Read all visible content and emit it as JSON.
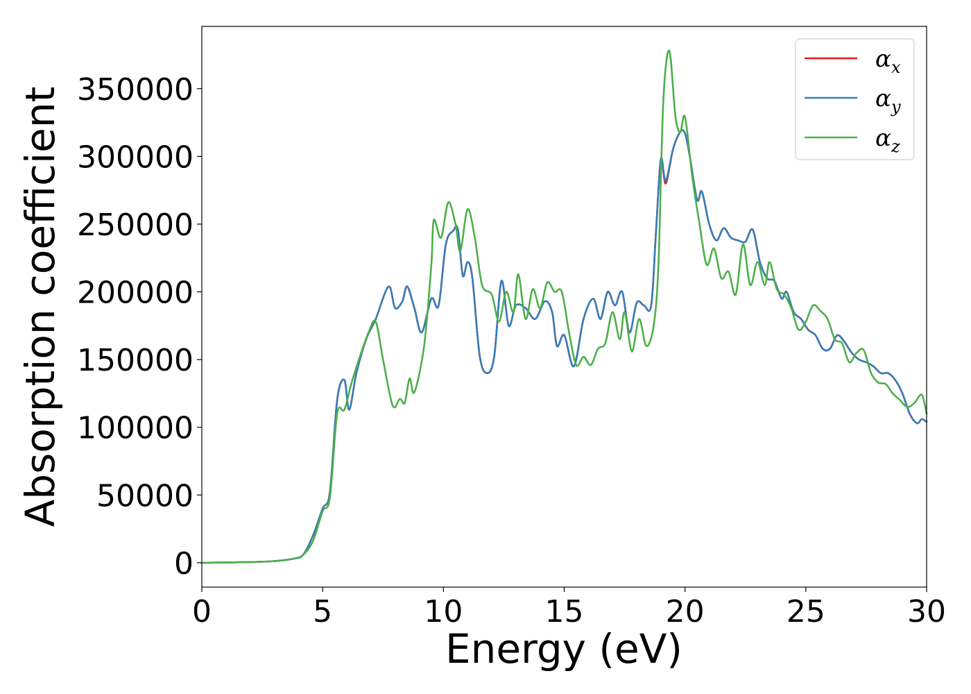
{
  "chart_data": {
    "type": "line",
    "title": "",
    "xlabel": "Energy (eV)",
    "ylabel": "Absorption coefficient",
    "xlim": [
      0,
      30
    ],
    "ylim": [
      -18000,
      396000
    ],
    "x_ticks": [
      0,
      5,
      10,
      15,
      20,
      25,
      30
    ],
    "y_ticks": [
      0,
      50000,
      100000,
      150000,
      200000,
      250000,
      300000,
      350000
    ],
    "grid": false,
    "legend_position": "top-right",
    "series": [
      {
        "name": "α",
        "subscript": "x",
        "color": "#e41a1c",
        "points": [
          [
            0,
            0
          ],
          [
            2,
            500
          ],
          [
            3,
            1200
          ],
          [
            3.8,
            3000
          ],
          [
            4.2,
            6000
          ],
          [
            4.6,
            20000
          ],
          [
            5.0,
            40000
          ],
          [
            5.3,
            52000
          ],
          [
            5.6,
            120000
          ],
          [
            5.9,
            135000
          ],
          [
            6.1,
            113000
          ],
          [
            6.4,
            140000
          ],
          [
            6.8,
            165000
          ],
          [
            7.2,
            180000
          ],
          [
            7.6,
            200000
          ],
          [
            7.8,
            203000
          ],
          [
            8.0,
            188000
          ],
          [
            8.3,
            193000
          ],
          [
            8.5,
            204000
          ],
          [
            8.8,
            188000
          ],
          [
            9.1,
            170000
          ],
          [
            9.5,
            195000
          ],
          [
            9.8,
            190000
          ],
          [
            10.1,
            235000
          ],
          [
            10.4,
            245000
          ],
          [
            10.6,
            246000
          ],
          [
            10.8,
            212000
          ],
          [
            11.0,
            222000
          ],
          [
            11.2,
            210000
          ],
          [
            11.5,
            153000
          ],
          [
            11.8,
            140000
          ],
          [
            12.1,
            152000
          ],
          [
            12.4,
            208000
          ],
          [
            12.7,
            175000
          ],
          [
            13.0,
            190000
          ],
          [
            13.4,
            188000
          ],
          [
            13.8,
            180000
          ],
          [
            14.2,
            193000
          ],
          [
            14.5,
            185000
          ],
          [
            14.7,
            160000
          ],
          [
            15.0,
            168000
          ],
          [
            15.4,
            145000
          ],
          [
            15.8,
            180000
          ],
          [
            16.2,
            195000
          ],
          [
            16.5,
            180000
          ],
          [
            16.8,
            200000
          ],
          [
            17.1,
            190000
          ],
          [
            17.4,
            200000
          ],
          [
            17.7,
            170000
          ],
          [
            18.0,
            192000
          ],
          [
            18.3,
            190000
          ],
          [
            18.6,
            190000
          ],
          [
            18.8,
            245000
          ],
          [
            19.0,
            298000
          ],
          [
            19.2,
            280000
          ],
          [
            19.5,
            305000
          ],
          [
            19.8,
            318000
          ],
          [
            20.0,
            317000
          ],
          [
            20.2,
            300000
          ],
          [
            20.5,
            268000
          ],
          [
            20.7,
            274000
          ],
          [
            21.0,
            250000
          ],
          [
            21.3,
            238000
          ],
          [
            21.6,
            247000
          ],
          [
            21.9,
            240000
          ],
          [
            22.2,
            238000
          ],
          [
            22.5,
            237000
          ],
          [
            22.8,
            246000
          ],
          [
            23.1,
            222000
          ],
          [
            23.4,
            210000
          ],
          [
            23.7,
            208000
          ],
          [
            24.0,
            195000
          ],
          [
            24.2,
            200000
          ],
          [
            24.5,
            185000
          ],
          [
            24.8,
            180000
          ],
          [
            25.1,
            172000
          ],
          [
            25.4,
            168000
          ],
          [
            25.7,
            158000
          ],
          [
            26.0,
            158000
          ],
          [
            26.3,
            168000
          ],
          [
            26.6,
            163000
          ],
          [
            26.9,
            155000
          ],
          [
            27.2,
            150000
          ],
          [
            27.5,
            148000
          ],
          [
            27.8,
            145000
          ],
          [
            28.1,
            140000
          ],
          [
            28.4,
            140000
          ],
          [
            28.7,
            135000
          ],
          [
            29.0,
            125000
          ],
          [
            29.3,
            110000
          ],
          [
            29.6,
            103000
          ],
          [
            29.8,
            106000
          ],
          [
            30.0,
            104000
          ]
        ]
      },
      {
        "name": "α",
        "subscript": "y",
        "color": "#377eb8",
        "points": [
          [
            0,
            0
          ],
          [
            2,
            500
          ],
          [
            3,
            1200
          ],
          [
            3.8,
            3000
          ],
          [
            4.2,
            6000
          ],
          [
            4.6,
            20000
          ],
          [
            5.0,
            40000
          ],
          [
            5.3,
            52000
          ],
          [
            5.6,
            120000
          ],
          [
            5.9,
            135000
          ],
          [
            6.1,
            113000
          ],
          [
            6.4,
            140000
          ],
          [
            6.8,
            165000
          ],
          [
            7.2,
            180000
          ],
          [
            7.6,
            200000
          ],
          [
            7.8,
            203000
          ],
          [
            8.0,
            188000
          ],
          [
            8.3,
            193000
          ],
          [
            8.5,
            204000
          ],
          [
            8.8,
            188000
          ],
          [
            9.1,
            170000
          ],
          [
            9.5,
            195000
          ],
          [
            9.8,
            190000
          ],
          [
            10.1,
            235000
          ],
          [
            10.4,
            245000
          ],
          [
            10.6,
            246000
          ],
          [
            10.8,
            212000
          ],
          [
            11.0,
            222000
          ],
          [
            11.2,
            210000
          ],
          [
            11.5,
            153000
          ],
          [
            11.8,
            140000
          ],
          [
            12.1,
            152000
          ],
          [
            12.4,
            208000
          ],
          [
            12.7,
            175000
          ],
          [
            13.0,
            190000
          ],
          [
            13.4,
            188000
          ],
          [
            13.8,
            180000
          ],
          [
            14.2,
            193000
          ],
          [
            14.5,
            185000
          ],
          [
            14.7,
            160000
          ],
          [
            15.0,
            168000
          ],
          [
            15.4,
            145000
          ],
          [
            15.8,
            180000
          ],
          [
            16.2,
            195000
          ],
          [
            16.5,
            180000
          ],
          [
            16.8,
            200000
          ],
          [
            17.1,
            190000
          ],
          [
            17.4,
            200000
          ],
          [
            17.7,
            170000
          ],
          [
            18.0,
            192000
          ],
          [
            18.3,
            190000
          ],
          [
            18.6,
            190000
          ],
          [
            18.8,
            245000
          ],
          [
            19.0,
            298000
          ],
          [
            19.2,
            282000
          ],
          [
            19.5,
            305000
          ],
          [
            19.8,
            318000
          ],
          [
            20.0,
            317000
          ],
          [
            20.2,
            300000
          ],
          [
            20.5,
            268000
          ],
          [
            20.7,
            274000
          ],
          [
            21.0,
            250000
          ],
          [
            21.3,
            238000
          ],
          [
            21.6,
            247000
          ],
          [
            21.9,
            240000
          ],
          [
            22.2,
            238000
          ],
          [
            22.5,
            237000
          ],
          [
            22.8,
            246000
          ],
          [
            23.1,
            222000
          ],
          [
            23.4,
            210000
          ],
          [
            23.7,
            208000
          ],
          [
            24.0,
            195000
          ],
          [
            24.2,
            200000
          ],
          [
            24.5,
            185000
          ],
          [
            24.8,
            180000
          ],
          [
            25.1,
            172000
          ],
          [
            25.4,
            168000
          ],
          [
            25.7,
            158000
          ],
          [
            26.0,
            158000
          ],
          [
            26.3,
            168000
          ],
          [
            26.6,
            163000
          ],
          [
            26.9,
            155000
          ],
          [
            27.2,
            150000
          ],
          [
            27.5,
            148000
          ],
          [
            27.8,
            145000
          ],
          [
            28.1,
            140000
          ],
          [
            28.4,
            140000
          ],
          [
            28.7,
            135000
          ],
          [
            29.0,
            125000
          ],
          [
            29.3,
            110000
          ],
          [
            29.6,
            103000
          ],
          [
            29.8,
            106000
          ],
          [
            30.0,
            104000
          ]
        ]
      },
      {
        "name": "α",
        "subscript": "z",
        "color": "#4daf4a",
        "points": [
          [
            0,
            0
          ],
          [
            2,
            500
          ],
          [
            3,
            1200
          ],
          [
            3.8,
            3000
          ],
          [
            4.2,
            6000
          ],
          [
            4.6,
            16000
          ],
          [
            5.0,
            38000
          ],
          [
            5.3,
            48000
          ],
          [
            5.6,
            110000
          ],
          [
            5.9,
            113000
          ],
          [
            6.2,
            133000
          ],
          [
            6.5,
            150000
          ],
          [
            6.9,
            170000
          ],
          [
            7.2,
            178000
          ],
          [
            7.5,
            150000
          ],
          [
            7.9,
            116000
          ],
          [
            8.2,
            121000
          ],
          [
            8.4,
            118000
          ],
          [
            8.6,
            136000
          ],
          [
            8.8,
            126000
          ],
          [
            9.2,
            160000
          ],
          [
            9.5,
            220000
          ],
          [
            9.6,
            253000
          ],
          [
            9.9,
            240000
          ],
          [
            10.2,
            266000
          ],
          [
            10.5,
            250000
          ],
          [
            10.7,
            230000
          ],
          [
            11.0,
            261000
          ],
          [
            11.3,
            240000
          ],
          [
            11.6,
            205000
          ],
          [
            12.0,
            198000
          ],
          [
            12.3,
            178000
          ],
          [
            12.6,
            200000
          ],
          [
            12.9,
            185000
          ],
          [
            13.1,
            213000
          ],
          [
            13.4,
            180000
          ],
          [
            13.7,
            202000
          ],
          [
            14.0,
            188000
          ],
          [
            14.3,
            207000
          ],
          [
            14.6,
            200000
          ],
          [
            14.9,
            200000
          ],
          [
            15.2,
            170000
          ],
          [
            15.5,
            146000
          ],
          [
            15.8,
            152000
          ],
          [
            16.1,
            146000
          ],
          [
            16.4,
            158000
          ],
          [
            16.7,
            162000
          ],
          [
            17.0,
            185000
          ],
          [
            17.3,
            165000
          ],
          [
            17.5,
            185000
          ],
          [
            17.8,
            156000
          ],
          [
            18.1,
            180000
          ],
          [
            18.4,
            160000
          ],
          [
            18.7,
            175000
          ],
          [
            18.9,
            220000
          ],
          [
            19.1,
            340000
          ],
          [
            19.35,
            378000
          ],
          [
            19.6,
            330000
          ],
          [
            19.8,
            318000
          ],
          [
            20.0,
            329000
          ],
          [
            20.3,
            285000
          ],
          [
            20.6,
            250000
          ],
          [
            20.9,
            220000
          ],
          [
            21.2,
            232000
          ],
          [
            21.5,
            210000
          ],
          [
            21.8,
            215000
          ],
          [
            22.1,
            198000
          ],
          [
            22.4,
            235000
          ],
          [
            22.7,
            205000
          ],
          [
            23.0,
            222000
          ],
          [
            23.3,
            205000
          ],
          [
            23.5,
            222000
          ],
          [
            23.8,
            202000
          ],
          [
            24.1,
            198000
          ],
          [
            24.4,
            188000
          ],
          [
            24.7,
            172000
          ],
          [
            25.0,
            178000
          ],
          [
            25.3,
            190000
          ],
          [
            25.6,
            186000
          ],
          [
            25.9,
            180000
          ],
          [
            26.2,
            165000
          ],
          [
            26.5,
            162000
          ],
          [
            26.8,
            148000
          ],
          [
            27.1,
            155000
          ],
          [
            27.4,
            157000
          ],
          [
            27.7,
            140000
          ],
          [
            28.0,
            133000
          ],
          [
            28.3,
            132000
          ],
          [
            28.6,
            125000
          ],
          [
            28.9,
            120000
          ],
          [
            29.2,
            115000
          ],
          [
            29.5,
            118000
          ],
          [
            29.8,
            124000
          ],
          [
            30.0,
            110000
          ]
        ]
      }
    ]
  }
}
